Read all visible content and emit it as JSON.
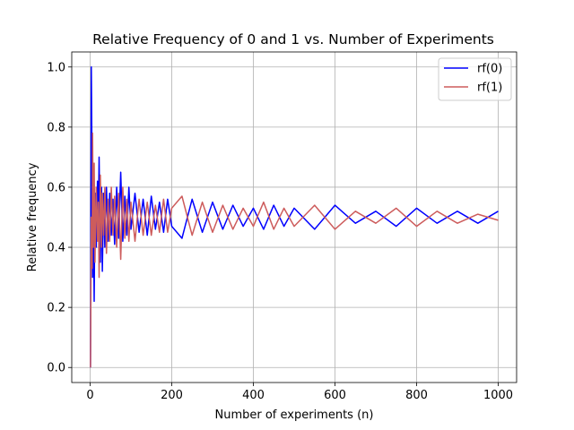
{
  "chart_data": {
    "type": "line",
    "title": "Relative Frequency of 0 and 1 vs. Number of Experiments",
    "xlabel": "Number of experiments (n)",
    "ylabel": "Relative frequency",
    "xlim": [
      -45,
      1045
    ],
    "ylim": [
      -0.05,
      1.05
    ],
    "xticks": [
      0,
      200,
      400,
      600,
      800,
      1000
    ],
    "yticks": [
      0.0,
      0.2,
      0.4,
      0.6,
      0.8,
      1.0
    ],
    "xtick_labels": [
      "0",
      "200",
      "400",
      "600",
      "800",
      "1000"
    ],
    "ytick_labels": [
      "0.0",
      "0.2",
      "0.4",
      "0.6",
      "0.8",
      "1.0"
    ],
    "grid": true,
    "legend_position": "top-right",
    "series": [
      {
        "name": "rf(0)",
        "color": "#0000ff",
        "x": [
          1,
          3,
          5,
          6,
          8,
          10,
          12,
          15,
          18,
          20,
          22,
          25,
          28,
          30,
          33,
          36,
          40,
          44,
          48,
          52,
          56,
          60,
          65,
          70,
          75,
          80,
          85,
          90,
          95,
          100,
          110,
          120,
          130,
          140,
          150,
          160,
          170,
          180,
          190,
          200,
          225,
          250,
          275,
          300,
          325,
          350,
          375,
          400,
          425,
          450,
          475,
          500,
          550,
          600,
          650,
          700,
          750,
          800,
          850,
          900,
          950,
          1000
        ],
        "values": [
          0.0,
          1.0,
          0.6,
          0.3,
          0.55,
          0.22,
          0.58,
          0.4,
          0.62,
          0.45,
          0.7,
          0.35,
          0.6,
          0.32,
          0.58,
          0.4,
          0.6,
          0.42,
          0.58,
          0.44,
          0.56,
          0.41,
          0.6,
          0.43,
          0.65,
          0.42,
          0.57,
          0.44,
          0.6,
          0.46,
          0.58,
          0.45,
          0.56,
          0.44,
          0.57,
          0.46,
          0.55,
          0.45,
          0.56,
          0.47,
          0.43,
          0.56,
          0.45,
          0.55,
          0.46,
          0.54,
          0.47,
          0.53,
          0.46,
          0.54,
          0.47,
          0.53,
          0.46,
          0.54,
          0.48,
          0.52,
          0.47,
          0.53,
          0.48,
          0.52,
          0.48,
          0.52
        ]
      },
      {
        "name": "rf(1)",
        "color": "#cd5c5c",
        "x": [
          1,
          3,
          5,
          6,
          8,
          10,
          12,
          15,
          18,
          20,
          22,
          25,
          28,
          30,
          33,
          36,
          40,
          44,
          48,
          52,
          56,
          60,
          65,
          70,
          75,
          80,
          85,
          90,
          95,
          100,
          110,
          120,
          130,
          140,
          150,
          160,
          170,
          180,
          190,
          200,
          225,
          250,
          275,
          300,
          325,
          350,
          375,
          400,
          425,
          450,
          475,
          500,
          550,
          600,
          650,
          700,
          750,
          800,
          850,
          900,
          950,
          1000
        ],
        "values": [
          0.0,
          0.5,
          0.33,
          0.78,
          0.4,
          0.68,
          0.35,
          0.6,
          0.42,
          0.55,
          0.3,
          0.64,
          0.4,
          0.58,
          0.44,
          0.6,
          0.38,
          0.56,
          0.42,
          0.6,
          0.44,
          0.57,
          0.4,
          0.58,
          0.36,
          0.6,
          0.43,
          0.56,
          0.42,
          0.55,
          0.42,
          0.56,
          0.44,
          0.55,
          0.44,
          0.54,
          0.45,
          0.56,
          0.45,
          0.53,
          0.57,
          0.44,
          0.55,
          0.45,
          0.54,
          0.46,
          0.53,
          0.47,
          0.55,
          0.46,
          0.53,
          0.47,
          0.54,
          0.46,
          0.52,
          0.48,
          0.53,
          0.47,
          0.52,
          0.48,
          0.51,
          0.49
        ]
      }
    ]
  }
}
